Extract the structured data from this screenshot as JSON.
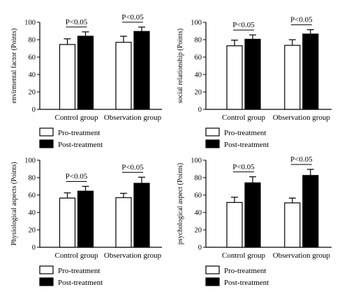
{
  "legend": {
    "entries": [
      "Pro-treatment",
      "Post-treatment"
    ],
    "colors": [
      "#ffffff",
      "#000000"
    ]
  },
  "chart_data": [
    {
      "type": "bar",
      "ylabel": "envirmental factor (Points)",
      "ylim": [
        0,
        100
      ],
      "yticks": [
        0,
        20,
        40,
        60,
        80,
        100
      ],
      "categories": [
        "Control group",
        "Observation group"
      ],
      "series": [
        {
          "name": "Pro-treatment",
          "values": [
            74.5,
            77.0
          ],
          "errors": [
            6.5,
            7.0
          ]
        },
        {
          "name": "Post-treatment",
          "values": [
            84.0,
            89.5
          ],
          "errors": [
            5.0,
            5.0
          ]
        }
      ],
      "annotations": [
        "P<0.05",
        "P<0.05"
      ]
    },
    {
      "type": "bar",
      "ylabel": "social relationship (Points)",
      "ylim": [
        0,
        100
      ],
      "yticks": [
        0,
        20,
        40,
        60,
        80,
        100
      ],
      "categories": [
        "Control group",
        "Observation group"
      ],
      "series": [
        {
          "name": "Pro-treatment",
          "values": [
            73.0,
            73.5
          ],
          "errors": [
            6.5,
            6.5
          ]
        },
        {
          "name": "Post-treatment",
          "values": [
            80.5,
            86.5
          ],
          "errors": [
            5.0,
            5.0
          ]
        }
      ],
      "annotations": [
        "P<0.05",
        "P<0.05"
      ]
    },
    {
      "type": "bar",
      "ylabel": "Physiological aspects (Points)",
      "ylim": [
        0,
        100
      ],
      "yticks": [
        0,
        20,
        40,
        60,
        80,
        100
      ],
      "categories": [
        "Control group",
        "Observation group"
      ],
      "series": [
        {
          "name": "Pro-treatment",
          "values": [
            56.5,
            57.0
          ],
          "errors": [
            6.0,
            5.0
          ]
        },
        {
          "name": "Post-treatment",
          "values": [
            64.5,
            73.5
          ],
          "errors": [
            5.5,
            7.0
          ]
        }
      ],
      "annotations": [
        "P<0.05",
        "P<0.05"
      ]
    },
    {
      "type": "bar",
      "ylabel": "psychological aspect (Points)",
      "ylim": [
        0,
        100
      ],
      "yticks": [
        0,
        20,
        40,
        60,
        80,
        100
      ],
      "categories": [
        "Control group",
        "Observation group"
      ],
      "series": [
        {
          "name": "Pro-treatment",
          "values": [
            51.5,
            51.0
          ],
          "errors": [
            6.0,
            5.5
          ]
        },
        {
          "name": "Post-treatment",
          "values": [
            74.0,
            82.5
          ],
          "errors": [
            7.0,
            7.0
          ]
        }
      ],
      "annotations": [
        "P<0.05",
        "P<0.05"
      ]
    }
  ]
}
